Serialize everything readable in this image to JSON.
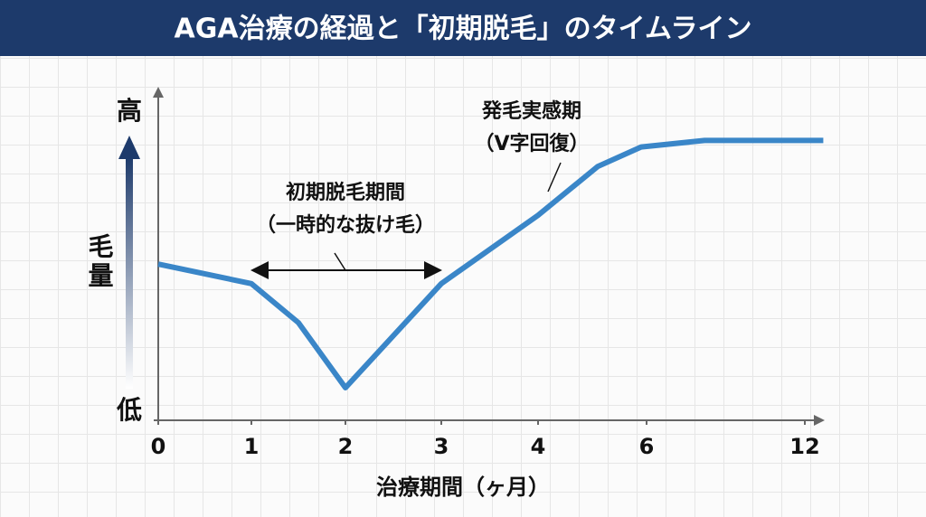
{
  "chart_data": {
    "type": "line",
    "title": "AGA治療の経過と「初期脱毛」のタイムライン",
    "x_label": "治療期間（ヶ月）",
    "y_label": "毛量",
    "y_high_label": "高",
    "y_low_label": "低",
    "annotations": [
      {
        "lines": [
          "初期脱毛期間",
          "（一時的な抜け毛）"
        ]
      },
      {
        "lines": [
          "発毛実感期",
          "（V字回復）"
        ]
      }
    ],
    "x": [
      0,
      1,
      1.5,
      2,
      2.5,
      3,
      4,
      5.1,
      5.9,
      8.2,
      12.7
    ],
    "series": [
      {
        "color": "#3a86c8",
        "values": [
          48,
          42,
          30,
          10,
          26,
          42,
          63,
          78,
          84,
          86,
          86
        ]
      }
    ],
    "xlim": [
      0,
      13
    ],
    "xticks": [
      0,
      1,
      2,
      3,
      4,
      6,
      12
    ],
    "ylim": [
      0,
      100
    ]
  }
}
